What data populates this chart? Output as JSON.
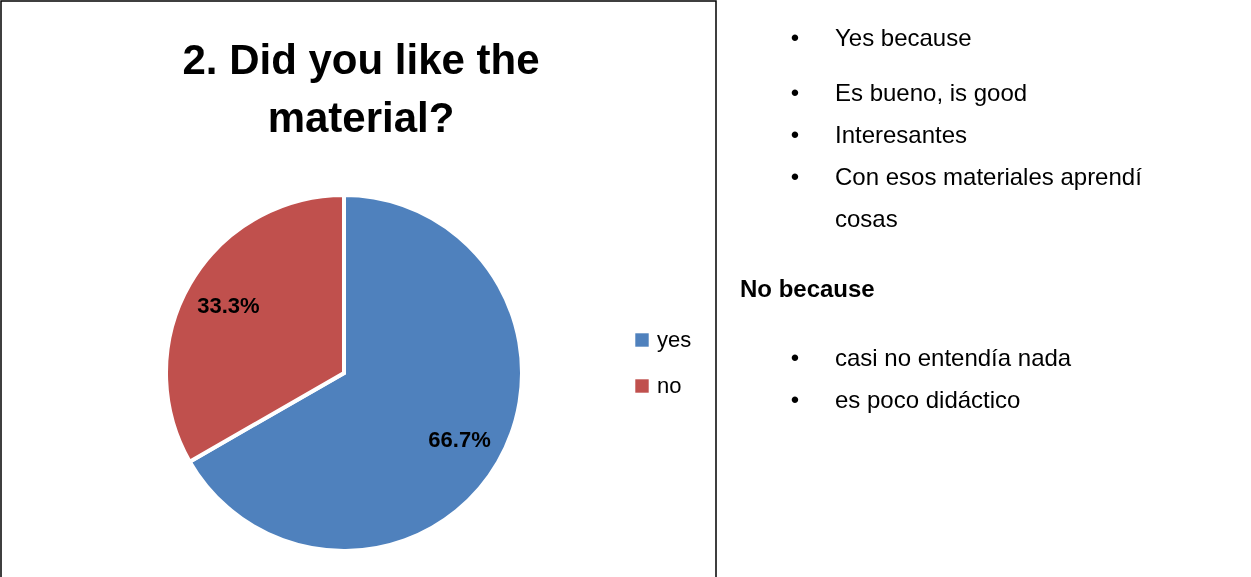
{
  "chart_data": [
    {
      "type": "pie",
      "title": "2. Did you like the material?",
      "categories": [
        "yes",
        "no"
      ],
      "values": [
        66.7,
        33.3
      ],
      "colors": [
        "#4f81bd",
        "#c0504d"
      ],
      "value_labels": [
        "66.7%",
        "33.3%"
      ],
      "legend": "right"
    },
    {
      "type": "other",
      "annotations": [
        "• Yes because",
        "• Es bueno, is good",
        "• Interesantes",
        "• Con esos materiales aprendí cosas"
      ]
    },
    {
      "type": "other",
      "title": "No because",
      "annotations": [
        "• casi no entendía nada",
        "• es poco didáctico"
      ]
    }
  ]
}
